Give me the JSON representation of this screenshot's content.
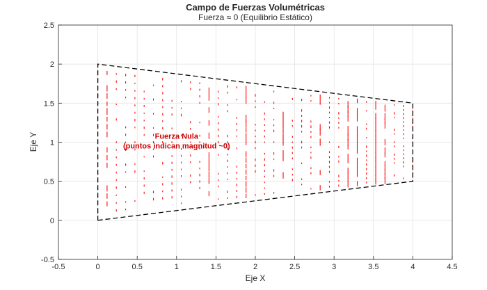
{
  "chart_data": {
    "type": "quiver",
    "title": "Campo de Fuerzas Volumétricas",
    "subtitle": "Fuerza  ≈ 0  (Equilibrio  Estático)",
    "xlabel": "Eje X",
    "ylabel": "Eje Y",
    "xlim": [
      -0.5,
      4.5
    ],
    "ylim": [
      -0.5,
      2.5
    ],
    "xticks": [
      "-0.5",
      "0",
      "0.5",
      "1",
      "1.5",
      "2",
      "2.5",
      "3",
      "3.5",
      "4",
      "4.5"
    ],
    "yticks": [
      "-0.5",
      "0",
      "0.5",
      "1",
      "1.5",
      "2",
      "2.5"
    ],
    "grid": true,
    "domain_outline": {
      "x": [
        0,
        4,
        4,
        0,
        0
      ],
      "y": [
        0,
        0.5,
        1.5,
        2,
        0
      ],
      "style": "dashed",
      "color": "#000000"
    },
    "vector_color": "#ff0000",
    "vector_magnitude": "≈ 0",
    "annotation": {
      "lines": [
        "Fuerza Nula",
        "(puntos indican magnitud ~0)"
      ],
      "x": 1.0,
      "y": 1.0,
      "color": "#cc0000"
    }
  }
}
